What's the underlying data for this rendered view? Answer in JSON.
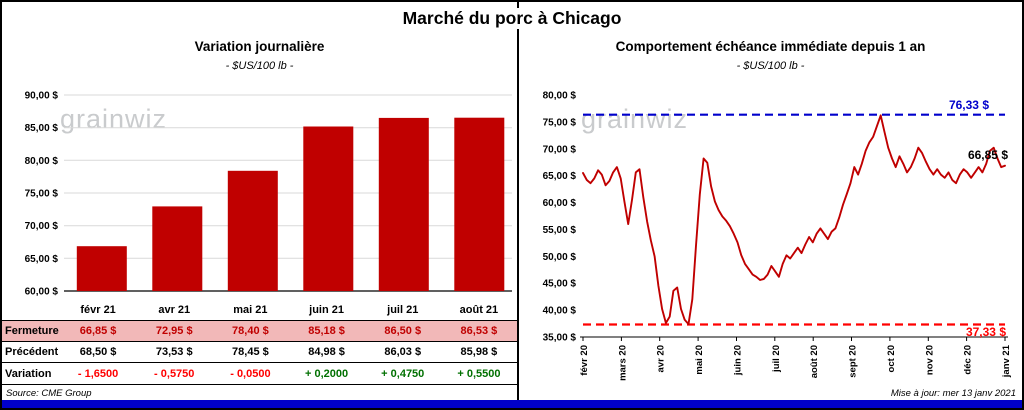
{
  "page_title": "Marché du porc à Chicago",
  "watermark": "grainwiz",
  "colors": {
    "bar": "#C00000",
    "line": "#C00000",
    "resistance": "#0000CC",
    "support": "#FF0000",
    "fermeture_bg": "#F2B8B8",
    "negative": "#FF0000",
    "positive": "#007000",
    "bottom_bar": "#0000C8"
  },
  "left_panel": {
    "title": "Variation  journalière",
    "subtitle": "- $US/100 lb -",
    "source": "Source: CME Group",
    "table_rows": [
      {
        "label": "Fermeture",
        "style": "fermeture",
        "values": [
          "66,85  $",
          "72,95  $",
          "78,40  $",
          "85,18  $",
          "86,50  $",
          "86,53  $"
        ]
      },
      {
        "label": "Précédent",
        "style": "precedent",
        "values": [
          "68,50  $",
          "73,53  $",
          "78,45  $",
          "84,98  $",
          "86,03  $",
          "85,98  $"
        ]
      },
      {
        "label": "Variation",
        "style": "variation",
        "values": [
          "- 1,6500",
          "- 0,5750",
          "- 0,0500",
          "+ 0,2000",
          "+ 0,4750",
          "+ 0,5500"
        ]
      }
    ]
  },
  "right_panel": {
    "title": "Comportement  échéance immédiate depuis 1 an",
    "subtitle": "- $US/100 lb -",
    "updated": "Mise à jour: mer 13 janv 2021",
    "resistance_label": "76,33 $",
    "support_label": "37,33 $",
    "last_label": "66,85 $"
  },
  "chart_data": [
    {
      "type": "bar",
      "title": "Variation journalière",
      "ylabel": "$US/100 lb",
      "categories": [
        "févr 21",
        "avr 21",
        "mai 21",
        "juin 21",
        "juil 21",
        "août 21"
      ],
      "values": [
        66.85,
        72.95,
        78.4,
        85.18,
        86.5,
        86.53
      ],
      "ylim": [
        60,
        90
      ],
      "ytick_step": 5,
      "yticks": [
        "90,00 $",
        "85,00 $",
        "80,00 $",
        "75,00 $",
        "70,00 $",
        "65,00 $",
        "60,00 $"
      ],
      "grid": true,
      "legend": "none"
    },
    {
      "type": "line",
      "title": "Comportement échéance immédiate depuis 1 an",
      "ylabel": "$US/100 lb",
      "categories": [
        "févr 20",
        "mars 20",
        "avr 20",
        "mai 20",
        "juin 20",
        "juil 20",
        "août 20",
        "sept 20",
        "oct 20",
        "nov 20",
        "déc 20",
        "janv 21"
      ],
      "ylim": [
        35,
        80
      ],
      "ytick_step": 5,
      "yticks": [
        "80,00 $",
        "75,00 $",
        "70,00 $",
        "65,00 $",
        "60,00 $",
        "55,00 $",
        "50,00 $",
        "45,00 $",
        "40,00 $",
        "35,00 $"
      ],
      "resistance": 76.33,
      "support": 37.33,
      "last_value": 66.85,
      "grid": false,
      "legend": "none",
      "values": [
        65.5,
        64.2,
        63.6,
        64.5,
        66.0,
        65.2,
        63.2,
        64.0,
        65.6,
        66.6,
        64.5,
        60.2,
        56.0,
        60.5,
        65.6,
        66.2,
        61.0,
        56.5,
        53.0,
        50.0,
        44.5,
        40.2,
        37.6,
        38.8,
        43.6,
        44.2,
        40.2,
        38.2,
        37.4,
        42.0,
        52.0,
        61.5,
        68.2,
        67.4,
        63.0,
        60.2,
        58.6,
        57.4,
        56.6,
        55.6,
        54.2,
        52.6,
        50.2,
        48.6,
        47.6,
        46.6,
        46.2,
        45.6,
        45.8,
        46.6,
        48.2,
        47.2,
        46.2,
        48.6,
        50.2,
        49.6,
        50.6,
        51.6,
        50.6,
        52.2,
        53.6,
        52.6,
        54.2,
        55.2,
        54.2,
        53.2,
        54.6,
        55.2,
        57.2,
        59.6,
        61.6,
        63.6,
        66.6,
        65.2,
        67.2,
        69.6,
        71.2,
        72.2,
        74.2,
        76.2,
        73.2,
        70.2,
        68.2,
        66.6,
        68.6,
        67.2,
        65.6,
        66.6,
        68.2,
        70.2,
        69.2,
        67.6,
        66.2,
        65.2,
        66.2,
        65.2,
        64.6,
        65.6,
        64.2,
        63.6,
        65.2,
        66.2,
        65.6,
        64.6,
        65.6,
        66.6,
        65.6,
        67.2,
        69.6,
        70.2,
        68.2,
        66.6,
        66.85
      ]
    }
  ]
}
